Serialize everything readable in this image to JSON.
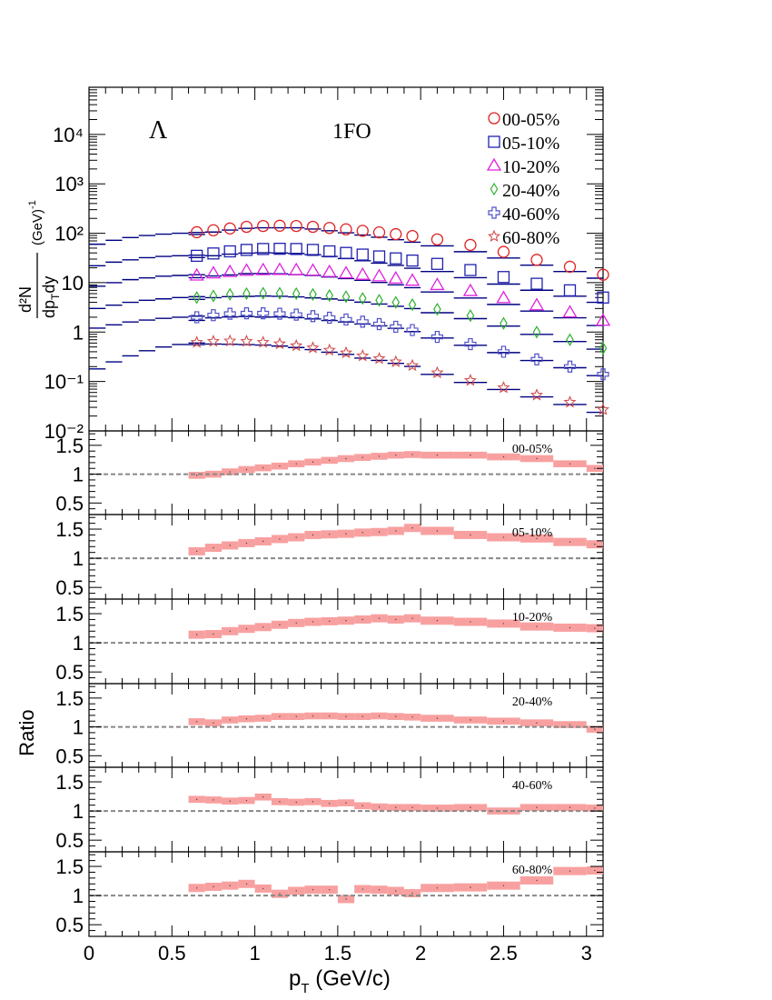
{
  "chart_data": {
    "type": "scatter",
    "particle_label": "Λ",
    "model_label": "1FO",
    "x_axis": {
      "label": "p",
      "label_sub": "T",
      "label_rest": " (GeV/c)",
      "range": [
        0,
        3.1
      ],
      "ticks": [
        "0",
        "0.5",
        "1",
        "1.5",
        "2",
        "2.5",
        "3"
      ]
    },
    "spectra": {
      "y_label_num": "d²N",
      "y_label_den": "dp",
      "y_label_den_sub": "T",
      "y_label_den_rest": "dy",
      "y_label_unit": "(GeV)",
      "y_label_unit_sup": "-1",
      "y_scale": "log",
      "y_range": [
        0.01,
        90000
      ],
      "y_ticks": [
        "10⁻²",
        "10⁻¹",
        "1",
        "10",
        "10²",
        "10³",
        "10⁴"
      ],
      "legend_placement": "top-right",
      "x": [
        0.65,
        0.75,
        0.85,
        0.95,
        1.05,
        1.15,
        1.25,
        1.35,
        1.45,
        1.55,
        1.65,
        1.75,
        1.85,
        1.95,
        2.1,
        2.3,
        2.5,
        2.7,
        2.9,
        3.1
      ],
      "series": [
        {
          "name": "00-05%",
          "marker": "circle",
          "color": "#e02020",
          "values": [
            105,
            115,
            125,
            135,
            140,
            142,
            140,
            135,
            128,
            120,
            112,
            104,
            96,
            88,
            75,
            58,
            42,
            29,
            21,
            14.5
          ]
        },
        {
          "name": "05-10%",
          "marker": "square",
          "color": "#2020b0",
          "values": [
            35,
            39,
            43,
            46,
            48,
            48.5,
            48,
            46,
            43,
            40,
            37,
            34,
            31,
            28,
            24,
            18,
            13,
            9.5,
            7,
            5
          ]
        },
        {
          "name": "10-20%",
          "marker": "triangle",
          "color": "#e020e0",
          "values": [
            14,
            15.5,
            16.5,
            17.5,
            18,
            18.2,
            18,
            17.5,
            16.5,
            15.5,
            14.5,
            13.5,
            12.2,
            11,
            9,
            6.8,
            4.9,
            3.5,
            2.5,
            1.7
          ]
        },
        {
          "name": "20-40%",
          "marker": "diamond",
          "color": "#30b030",
          "values": [
            5,
            5.4,
            5.8,
            6.0,
            6.1,
            6.1,
            6.0,
            5.8,
            5.5,
            5.2,
            4.8,
            4.4,
            4.0,
            3.6,
            2.9,
            2.15,
            1.5,
            1.0,
            0.7,
            0.47
          ]
        },
        {
          "name": "40-60%",
          "marker": "cross",
          "color": "#5050c8",
          "values": [
            2.0,
            2.2,
            2.35,
            2.4,
            2.4,
            2.35,
            2.25,
            2.1,
            1.95,
            1.8,
            1.62,
            1.45,
            1.28,
            1.1,
            0.8,
            0.57,
            0.4,
            0.28,
            0.2,
            0.14
          ]
        },
        {
          "name": "60-80%",
          "marker": "star",
          "color": "#d05050",
          "values": [
            0.62,
            0.65,
            0.66,
            0.65,
            0.62,
            0.58,
            0.53,
            0.48,
            0.43,
            0.38,
            0.33,
            0.29,
            0.25,
            0.21,
            0.15,
            0.105,
            0.075,
            0.053,
            0.038,
            0.027
          ]
        }
      ],
      "model_curves": {
        "color": "#000080",
        "x_start": [
          0.0,
          0.1,
          0.2,
          0.3,
          0.4,
          0.5,
          0.6
        ],
        "x_step": 0.1,
        "ratios": [
          [
            0.9,
            0.92,
            0.93,
            0.93,
            0.92,
            0.91,
            0.92,
            0.9,
            0.88,
            0.85,
            0.82,
            0.8,
            0.77,
            0.75,
            0.74,
            0.73,
            0.75,
            0.78,
            0.8,
            0.85
          ],
          [
            0.92,
            0.9,
            0.88,
            0.86,
            0.84,
            0.82,
            0.81,
            0.8,
            0.79,
            0.77,
            0.75,
            0.73,
            0.72,
            0.7,
            0.7,
            0.7,
            0.72,
            0.74,
            0.76,
            0.8
          ],
          [
            0.9,
            0.88,
            0.87,
            0.87,
            0.85,
            0.83,
            0.81,
            0.8,
            0.79,
            0.78,
            0.77,
            0.75,
            0.74,
            0.72,
            0.72,
            0.72,
            0.74,
            0.76,
            0.78,
            0.8
          ],
          [
            0.92,
            0.92,
            0.9,
            0.88,
            0.88,
            0.87,
            0.86,
            0.85,
            0.85,
            0.85,
            0.84,
            0.84,
            0.83,
            0.83,
            0.85,
            0.87,
            0.88,
            0.9,
            0.92,
            0.96
          ],
          [
            0.86,
            0.88,
            0.86,
            0.86,
            0.84,
            0.86,
            0.87,
            0.88,
            0.88,
            0.89,
            0.9,
            0.92,
            0.93,
            0.93,
            0.95,
            0.95,
            0.96,
            0.95,
            0.95,
            0.94
          ],
          [
            0.9,
            0.88,
            0.86,
            0.86,
            0.88,
            0.9,
            0.92,
            0.92,
            0.91,
            0.93,
            0.9,
            0.92,
            0.93,
            0.96,
            0.93,
            0.91,
            0.92,
            0.92,
            0.9,
            0.88
          ]
        ],
        "extrapolated": [
          [
            60,
            72,
            82,
            90,
            96,
            100,
            104
          ],
          [
            22,
            26,
            29,
            32,
            34,
            35,
            36
          ],
          [
            8.5,
            10,
            11.5,
            12.5,
            13.5,
            14,
            14.5
          ],
          [
            3.0,
            3.5,
            4.0,
            4.4,
            4.7,
            5.0,
            5.2
          ],
          [
            1.2,
            1.4,
            1.6,
            1.75,
            1.9,
            2.0,
            2.1
          ],
          [
            0.18,
            0.25,
            0.33,
            0.42,
            0.5,
            0.56,
            0.6
          ]
        ]
      }
    },
    "ratio_panels": {
      "y_label": "Ratio",
      "y_range": [
        0.3,
        1.75
      ],
      "y_ticks": [
        "0.5",
        "1",
        "1.5"
      ],
      "reference_line": 1,
      "band_color": "#f8a0a0",
      "x_bins": [
        [
          0.6,
          0.7
        ],
        [
          0.7,
          0.8
        ],
        [
          0.8,
          0.9
        ],
        [
          0.9,
          1.0
        ],
        [
          1.0,
          1.1
        ],
        [
          1.1,
          1.2
        ],
        [
          1.2,
          1.3
        ],
        [
          1.3,
          1.4
        ],
        [
          1.4,
          1.5
        ],
        [
          1.5,
          1.6
        ],
        [
          1.6,
          1.7
        ],
        [
          1.7,
          1.8
        ],
        [
          1.8,
          1.9
        ],
        [
          1.9,
          2.0
        ],
        [
          2.0,
          2.2
        ],
        [
          2.2,
          2.4
        ],
        [
          2.4,
          2.6
        ],
        [
          2.6,
          2.8
        ],
        [
          2.8,
          3.0
        ],
        [
          3.0,
          3.1
        ]
      ],
      "panels": [
        {
          "label": "00-05%",
          "values": [
            0.98,
            1.0,
            1.04,
            1.08,
            1.11,
            1.14,
            1.18,
            1.21,
            1.24,
            1.27,
            1.29,
            1.31,
            1.33,
            1.34,
            1.33,
            1.33,
            1.3,
            1.27,
            1.18,
            1.1
          ],
          "half_width": 0.06
        },
        {
          "label": "05-10%",
          "values": [
            1.12,
            1.18,
            1.22,
            1.26,
            1.29,
            1.33,
            1.36,
            1.4,
            1.41,
            1.42,
            1.44,
            1.45,
            1.47,
            1.52,
            1.47,
            1.4,
            1.36,
            1.34,
            1.28,
            1.24
          ],
          "half_width": 0.07
        },
        {
          "label": "10-20%",
          "values": [
            1.14,
            1.15,
            1.2,
            1.24,
            1.27,
            1.31,
            1.34,
            1.36,
            1.37,
            1.38,
            1.4,
            1.42,
            1.4,
            1.42,
            1.38,
            1.36,
            1.33,
            1.28,
            1.26,
            1.25
          ],
          "half_width": 0.07
        },
        {
          "label": "20-40%",
          "values": [
            1.09,
            1.07,
            1.12,
            1.14,
            1.15,
            1.18,
            1.18,
            1.19,
            1.19,
            1.18,
            1.18,
            1.19,
            1.18,
            1.17,
            1.15,
            1.12,
            1.1,
            1.07,
            1.04,
            0.96
          ],
          "half_width": 0.06
        },
        {
          "label": "40-60%",
          "values": [
            1.2,
            1.19,
            1.17,
            1.18,
            1.24,
            1.16,
            1.15,
            1.16,
            1.13,
            1.14,
            1.09,
            1.07,
            1.06,
            1.06,
            1.05,
            1.06,
            1.0,
            1.06,
            1.06,
            1.05
          ],
          "half_width": 0.06
        },
        {
          "label": "60-80%",
          "values": [
            1.13,
            1.15,
            1.17,
            1.2,
            1.12,
            1.03,
            1.08,
            1.1,
            1.1,
            0.94,
            1.11,
            1.1,
            1.08,
            1.04,
            1.13,
            1.14,
            1.17,
            1.26,
            1.42,
            1.43
          ],
          "half_width": 0.07
        }
      ]
    }
  }
}
